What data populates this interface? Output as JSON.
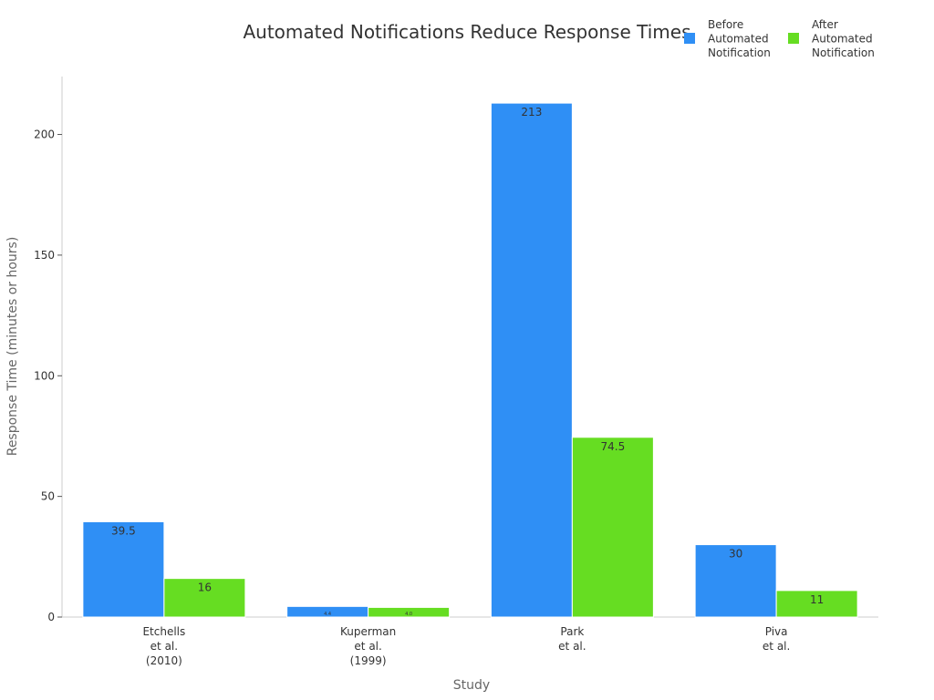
{
  "chart_data": {
    "type": "bar",
    "title": "Automated Notifications Reduce Response Times",
    "xlabel": "Study",
    "ylabel": "Response Time (minutes or hours)",
    "categories": [
      [
        "Etchells",
        "et al.",
        "(2010)"
      ],
      [
        "Kuperman",
        "et al.",
        "(1999)"
      ],
      [
        "Park",
        "et al."
      ],
      [
        "Piva",
        "et al."
      ]
    ],
    "series": [
      {
        "name": [
          "Before",
          "Automated",
          "Notification"
        ],
        "color": "#2f8ff5",
        "values": [
          39.5,
          4.4,
          213,
          30
        ],
        "labels": [
          "39.5",
          "4.4",
          "213",
          "30"
        ]
      },
      {
        "name": [
          "After",
          "Automated",
          "Notification"
        ],
        "color": "#66dd22",
        "values": [
          16,
          4,
          74.5,
          11
        ],
        "labels": [
          "16",
          "4.0",
          "74.5",
          "11"
        ]
      }
    ],
    "ylim": [
      0,
      224
    ],
    "yticks": [
      0,
      50,
      100,
      150,
      200
    ],
    "grid": false,
    "legend_position": "top-right"
  }
}
